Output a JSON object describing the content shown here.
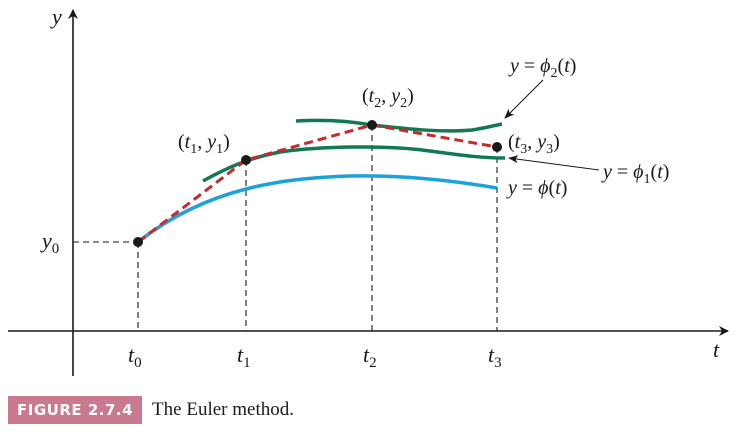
{
  "figure": {
    "caption_label": "FIGURE 2.7.4",
    "caption_text": "The Euler method.",
    "colors": {
      "exact_solution": "#1ba3d9",
      "approximate_solutions": "#127a52",
      "euler_polygon": "#c62a2f",
      "axes": "#1a1a1a",
      "caption_badge": "#c97a8e"
    },
    "axes": {
      "x_label": "t",
      "y_label": "y"
    },
    "ticks": {
      "x": [
        {
          "base": "t",
          "sub": "0"
        },
        {
          "base": "t",
          "sub": "1"
        },
        {
          "base": "t",
          "sub": "2"
        },
        {
          "base": "t",
          "sub": "3"
        }
      ],
      "y": [
        {
          "base": "y",
          "sub": "0"
        }
      ]
    },
    "points": [
      {
        "t": "t",
        "y": "y",
        "sub": "1"
      },
      {
        "t": "t",
        "y": "y",
        "sub": "2"
      },
      {
        "t": "t",
        "y": "y",
        "sub": "3"
      }
    ],
    "curves": {
      "exact": {
        "lhs": "y",
        "rhs": "ϕ",
        "arg": "t"
      },
      "phi1": {
        "lhs": "y",
        "rhs": "ϕ",
        "sub": "1",
        "arg": "t"
      },
      "phi2": {
        "lhs": "y",
        "rhs": "ϕ",
        "sub": "2",
        "arg": "t"
      }
    }
  }
}
